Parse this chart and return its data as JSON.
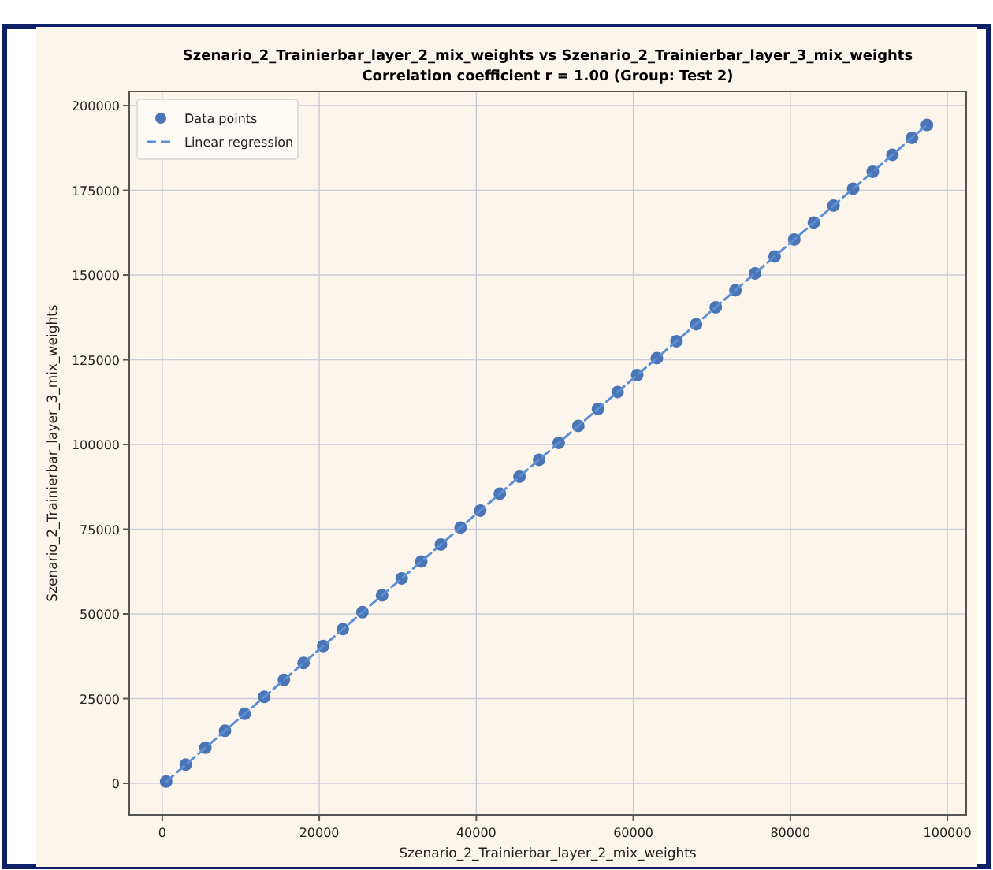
{
  "chart_data": {
    "type": "scatter",
    "title": "Szenario_2_Trainierbar_layer_2_mix_weights vs Szenario_2_Trainierbar_layer_3_mix_weights",
    "subtitle": "Correlation coefficient r = 1.00 (Group: Test 2)",
    "xlabel": "Szenario_2_Trainierbar_layer_2_mix_weights",
    "ylabel": "Szenario_2_Trainierbar_layer_3_mix_weights",
    "xlim": [
      -4200,
      102400
    ],
    "ylim": [
      -9300,
      204200
    ],
    "xticks": [
      0,
      20000,
      40000,
      60000,
      80000,
      100000
    ],
    "yticks": [
      0,
      25000,
      50000,
      75000,
      100000,
      125000,
      150000,
      175000,
      200000
    ],
    "grid": true,
    "legend": "top left",
    "series": [
      {
        "name": "Data points",
        "color": "#4a74b4",
        "marker": "circle",
        "x": [
          500,
          3000,
          5500,
          8000,
          10500,
          13000,
          15500,
          18000,
          20500,
          23000,
          25500,
          28000,
          30500,
          33000,
          35500,
          38000,
          40500,
          43000,
          45500,
          48000,
          50500,
          53000,
          55500,
          58000,
          60500,
          63000,
          65500,
          68000,
          70500,
          73000,
          75500,
          78000,
          80500,
          83000,
          85500,
          88000,
          90500,
          93000,
          95500,
          97400
        ],
        "values": [
          500,
          5500,
          10500,
          15500,
          20500,
          25500,
          30500,
          35500,
          40500,
          45500,
          50500,
          55500,
          60500,
          65500,
          70500,
          75500,
          80500,
          85500,
          90500,
          95500,
          100500,
          105500,
          110500,
          115500,
          120500,
          125500,
          130500,
          135500,
          140500,
          145500,
          150500,
          155500,
          160500,
          165500,
          170500,
          175500,
          180500,
          185500,
          190500,
          194300
        ]
      },
      {
        "name": "Linear regression",
        "type": "line",
        "color": "#5b8fd6",
        "line_style": "dashed",
        "marker": "none",
        "x": [
          500,
          97400
        ],
        "values": [
          500,
          194300
        ]
      }
    ]
  }
}
